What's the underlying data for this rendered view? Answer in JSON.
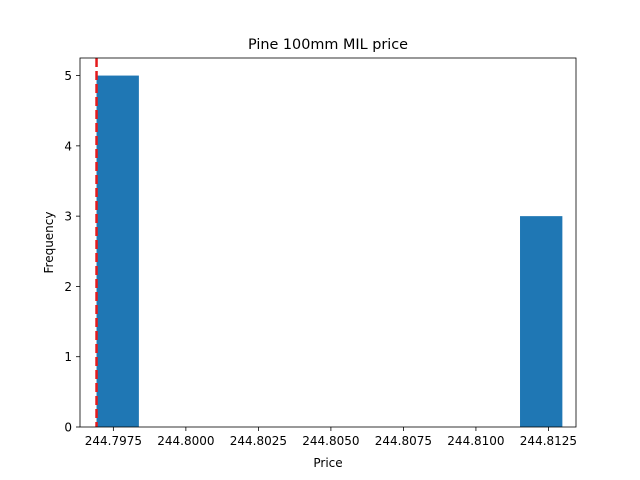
{
  "chart_data": {
    "type": "bar",
    "title": "Pine 100mm MIL price",
    "xlabel": "Price",
    "ylabel": "Frequency",
    "bars": [
      {
        "x0": 244.79692,
        "x1": 244.79838,
        "value": 5
      },
      {
        "x0": 244.79838,
        "x1": 244.79984,
        "value": 0
      },
      {
        "x0": 244.79984,
        "x1": 244.8013,
        "value": 0
      },
      {
        "x0": 244.8013,
        "x1": 244.80276,
        "value": 0
      },
      {
        "x0": 244.80276,
        "x1": 244.80422,
        "value": 0
      },
      {
        "x0": 244.80422,
        "x1": 244.80568,
        "value": 0
      },
      {
        "x0": 244.80568,
        "x1": 244.80714,
        "value": 0
      },
      {
        "x0": 244.80714,
        "x1": 244.8086,
        "value": 0
      },
      {
        "x0": 244.8086,
        "x1": 244.81006,
        "value": 0
      },
      {
        "x0": 244.81006,
        "x1": 244.81152,
        "value": 0
      },
      {
        "x0": 244.81152,
        "x1": 244.81298,
        "value": 3
      }
    ],
    "xlim": [
      244.79635,
      244.81345
    ],
    "ylim": [
      0,
      5.25
    ],
    "xticks": [
      244.7975,
      244.8,
      244.8025,
      244.805,
      244.8075,
      244.81,
      244.8125
    ],
    "xtick_labels": [
      "244.7975",
      "244.8000",
      "244.8025",
      "244.8050",
      "244.8075",
      "244.8100",
      "244.8125"
    ],
    "yticks": [
      0,
      1,
      2,
      3,
      4,
      5
    ],
    "ytick_labels": [
      "0",
      "1",
      "2",
      "3",
      "4",
      "5"
    ],
    "reference_line": {
      "x": 244.79692,
      "style": "dashed"
    },
    "grid": false,
    "colors": {
      "bar": "#1f77b4",
      "reference_line": "#e41a1c",
      "axis": "#000000"
    }
  }
}
